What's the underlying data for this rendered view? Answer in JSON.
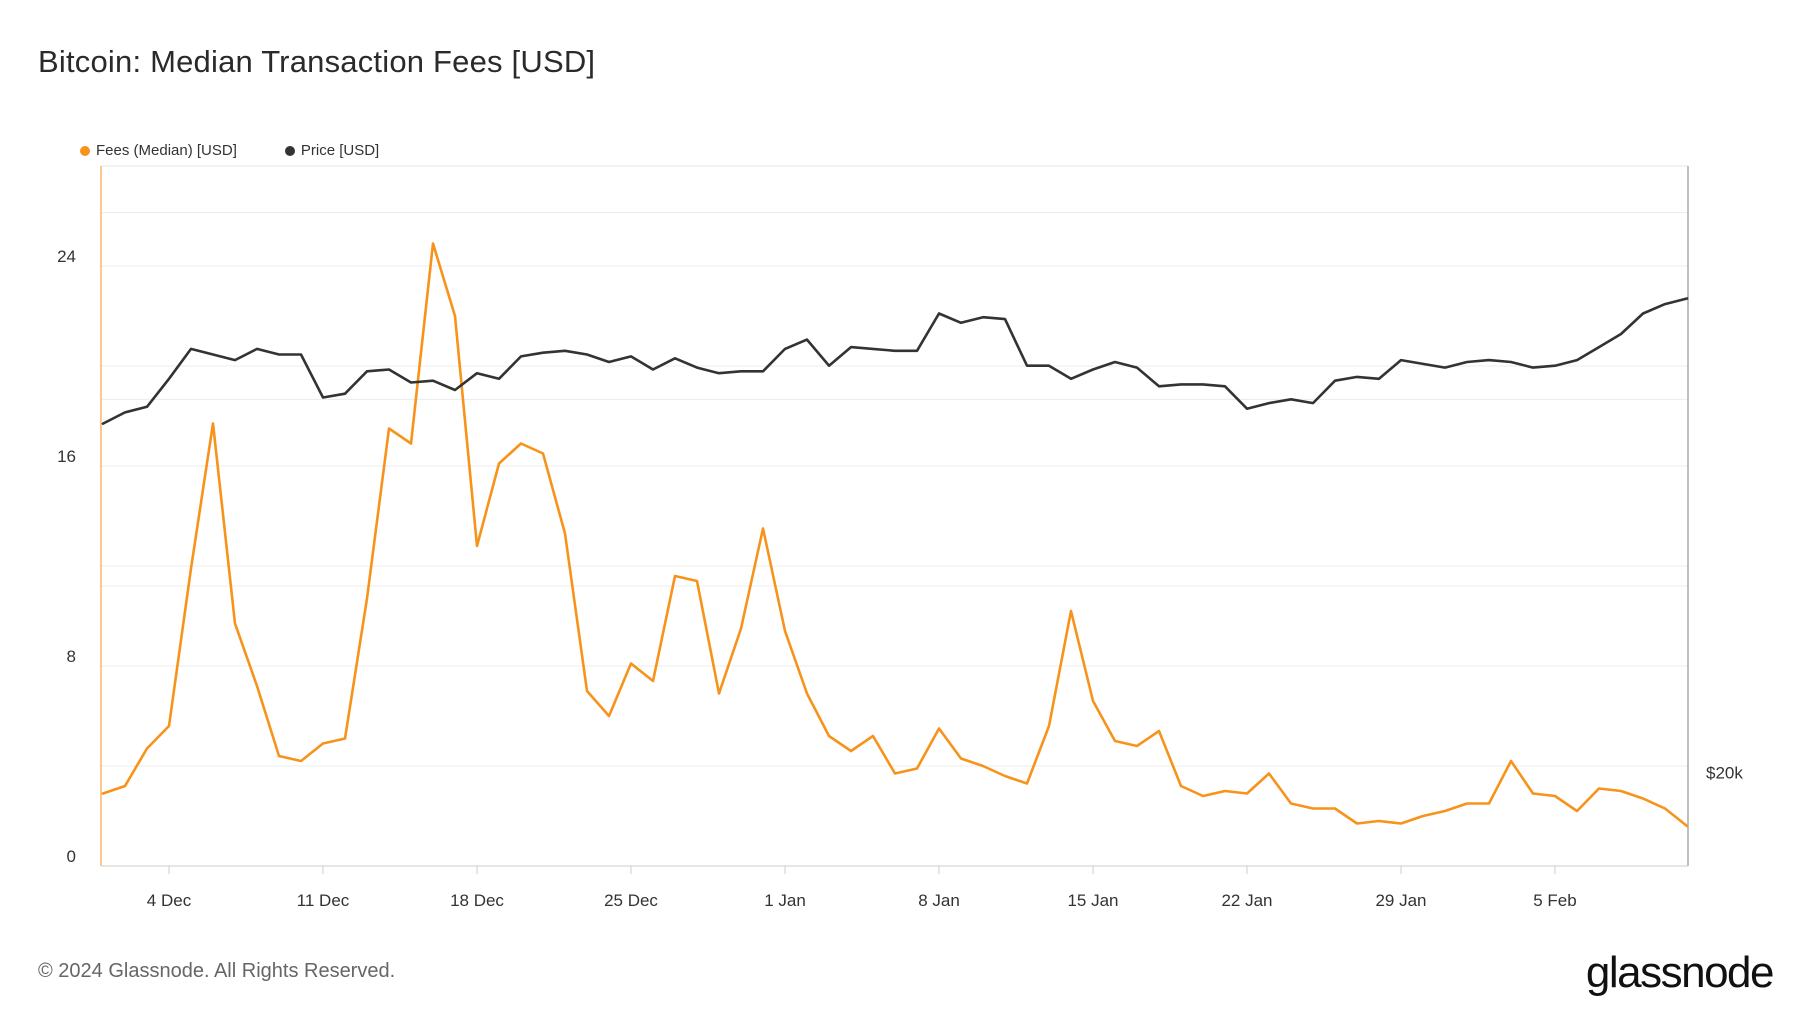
{
  "title": "Bitcoin: Median Transaction Fees [USD]",
  "footer": "© 2024 Glassnode. All Rights Reserved.",
  "logo": "glassnode",
  "chart_data": {
    "type": "line",
    "title": "Bitcoin: Median Transaction Fees [USD]",
    "legend_position": "top-left",
    "grid": true,
    "x_ticks": [
      "4 Dec",
      "11 Dec",
      "18 Dec",
      "25 Dec",
      "1 Jan",
      "8 Jan",
      "15 Jan",
      "22 Jan",
      "29 Jan",
      "5 Feb"
    ],
    "x_start": "2023-12-01",
    "y_left": {
      "ticks": [
        "0",
        "8",
        "16",
        "24"
      ],
      "range": [
        0,
        28
      ]
    },
    "y_right": {
      "ticks": [
        "$20k"
      ]
    },
    "series": [
      {
        "name": "Fees (Median) [USD]",
        "color": "#F7931A",
        "axis": "left",
        "values": [
          2.9,
          3.2,
          4.7,
          5.6,
          11.9,
          17.7,
          9.7,
          7.2,
          4.4,
          4.2,
          4.9,
          5.1,
          10.7,
          17.5,
          16.9,
          24.9,
          22.0,
          12.8,
          16.1,
          16.9,
          16.5,
          13.3,
          7.0,
          6.0,
          8.1,
          7.4,
          11.6,
          11.4,
          6.9,
          9.5,
          13.5,
          9.4,
          6.9,
          5.2,
          4.6,
          5.2,
          3.7,
          3.9,
          5.5,
          4.3,
          4.0,
          3.6,
          3.3,
          5.6,
          10.2,
          6.6,
          5.0,
          4.8,
          5.4,
          3.2,
          2.8,
          3.0,
          2.9,
          3.7,
          2.5,
          2.3,
          2.3,
          1.7,
          1.8,
          1.7,
          2.0,
          2.2,
          2.5,
          2.5,
          4.2,
          2.9,
          2.8,
          2.2,
          3.1,
          3.0,
          2.7,
          2.3,
          1.6
        ]
      },
      {
        "name": "Price [USD]",
        "color": "#333333",
        "axis": "right",
        "values": [
          38700,
          39300,
          39600,
          41100,
          42700,
          42400,
          42100,
          42700,
          42400,
          42400,
          40100,
          40300,
          41500,
          41600,
          40900,
          41000,
          40500,
          41400,
          41100,
          42300,
          42500,
          42600,
          42400,
          42000,
          42300,
          41600,
          42200,
          41700,
          41400,
          41500,
          41500,
          42700,
          43200,
          41800,
          42800,
          42700,
          42600,
          42600,
          44600,
          44100,
          44400,
          44300,
          41800,
          41800,
          41100,
          41600,
          42000,
          41700,
          40700,
          40800,
          40800,
          40700,
          39500,
          39800,
          40000,
          39800,
          41000,
          41200,
          41100,
          42100,
          41900,
          41700,
          42000,
          42100,
          42000,
          41700,
          41800,
          42100,
          42800,
          43500,
          44600,
          45100,
          45400
        ]
      }
    ]
  }
}
